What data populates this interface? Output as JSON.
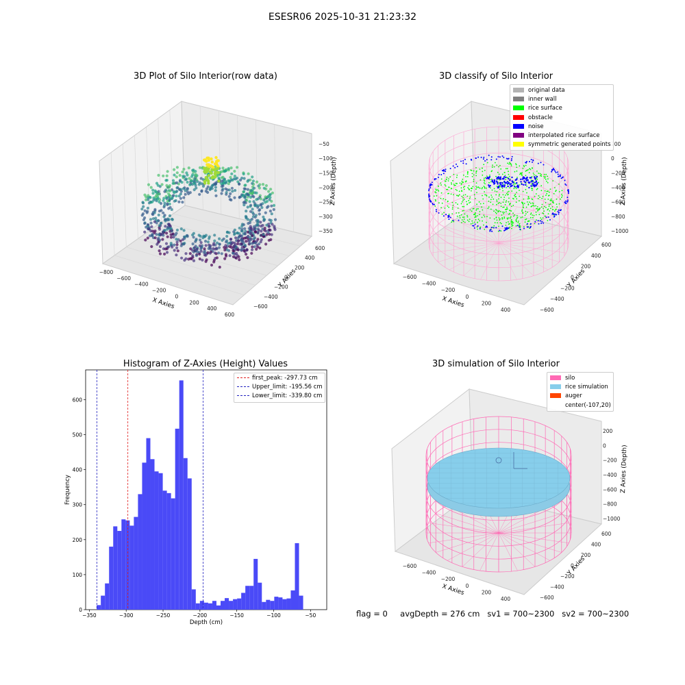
{
  "suptitle": "ESESR06 2025-10-31 21:23:32",
  "footer": {
    "flag": "flag = 0",
    "avg_depth": "avgDepth = 276 cm",
    "sv1": "sv1 = 700~2300",
    "sv2": "sv2 = 700~2300"
  },
  "colors": {
    "histogram_bar": "#4a4af7",
    "first_peak_line": "#e01b1b",
    "limit_line": "#1f1fbf",
    "silo_pink": "#ff69b4",
    "rice_surface": "#00ff00",
    "noise": "#0000ff",
    "rice_sim": "#87ceeb"
  },
  "chart_data": [
    {
      "type": "scatter3d",
      "title": "3D Plot of Silo Interior(row data)",
      "xlabel": "X Axies",
      "ylabel": "Y Axies",
      "zlabel": "Z Axies (Depth)",
      "x_ticks": [
        "−800",
        "−600",
        "−400",
        "−200",
        "0",
        "200",
        "400",
        "600"
      ],
      "y_ticks": [
        "−600",
        "−400",
        "−200",
        "0",
        "200",
        "400",
        "600"
      ],
      "z_ticks": [
        "−50",
        "−100",
        "−150",
        "−200",
        "−250",
        "−300",
        "−350"
      ],
      "colormap": "viridis"
    },
    {
      "type": "scatter3d",
      "title": "3D classify of Silo Interior",
      "xlabel": "X Axies",
      "ylabel": "Y Axies",
      "zlabel": "Z Axies (Depth)",
      "x_ticks": [
        "−600",
        "−400",
        "−200",
        "0",
        "200",
        "400"
      ],
      "y_ticks": [
        "−600",
        "−400",
        "−200",
        "0",
        "200",
        "400",
        "600"
      ],
      "z_ticks": [
        "200",
        "0",
        "−200",
        "−400",
        "−600",
        "−800",
        "−1000"
      ],
      "legend_position": "top-right",
      "legend": [
        {
          "label": "original data",
          "color": "#b3b3b3"
        },
        {
          "label": "inner wall",
          "color": "#808080"
        },
        {
          "label": "rice surface",
          "color": "#00ff00"
        },
        {
          "label": "obstacle",
          "color": "#ff0000"
        },
        {
          "label": "noise",
          "color": "#0000ff"
        },
        {
          "label": "interpolated rice surface",
          "color": "#800080"
        },
        {
          "label": "symmetric generated points",
          "color": "#ffff00"
        }
      ]
    },
    {
      "type": "bar",
      "title": "Histogram of Z-Axies (Height) Values",
      "xlabel": "Depth (cm)",
      "ylabel": "Frequency",
      "xlim": [
        -355,
        -28
      ],
      "ylim": [
        0,
        685
      ],
      "x_ticks": [
        -350,
        -300,
        -250,
        -200,
        -150,
        -100,
        -50
      ],
      "x_tick_labels": [
        "−350",
        "−300",
        "−250",
        "−200",
        "−150",
        "−100",
        "−50"
      ],
      "y_ticks": [
        0,
        100,
        200,
        300,
        400,
        500,
        600
      ],
      "bin_start": -340,
      "bin_width": 5.6,
      "values": [
        13,
        40,
        75,
        180,
        238,
        225,
        258,
        255,
        240,
        265,
        330,
        420,
        490,
        430,
        395,
        390,
        340,
        333,
        318,
        517,
        655,
        433,
        375,
        58,
        18,
        25,
        20,
        18,
        25,
        12,
        25,
        33,
        25,
        30,
        32,
        48,
        68,
        68,
        145,
        77,
        22,
        28,
        25,
        37,
        35,
        30,
        32,
        55,
        190,
        40
      ],
      "vlines": [
        {
          "x": -297.73,
          "label": "first_peak: -297.73 cm",
          "color": "#e01b1b"
        },
        {
          "x": -195.56,
          "label": "Upper_limit: -195.56 cm",
          "color": "#1f1fbf"
        },
        {
          "x": -339.8,
          "label": "Lower_limit: -339.80 cm",
          "color": "#1f1fbf"
        }
      ],
      "legend_position": "top-right"
    },
    {
      "type": "surface3d",
      "title": "3D simulation of Silo Interior",
      "xlabel": "X Axies",
      "ylabel": "Y Axies",
      "zlabel": "Z Axies (Depth)",
      "x_ticks": [
        "−600",
        "−400",
        "−200",
        "0",
        "200",
        "400"
      ],
      "y_ticks": [
        "−600",
        "−400",
        "−200",
        "0",
        "200",
        "400",
        "600"
      ],
      "z_ticks": [
        "200",
        "0",
        "−200",
        "−400",
        "−600",
        "−800",
        "−1000"
      ],
      "legend_position": "top-right",
      "legend": [
        {
          "label": "silo",
          "color": "#ff69b4"
        },
        {
          "label": "rice simulation",
          "color": "#87ceeb"
        },
        {
          "label": "auger",
          "color": "#ff4500"
        },
        {
          "label": "center(-107,20)",
          "color": ""
        }
      ]
    }
  ]
}
